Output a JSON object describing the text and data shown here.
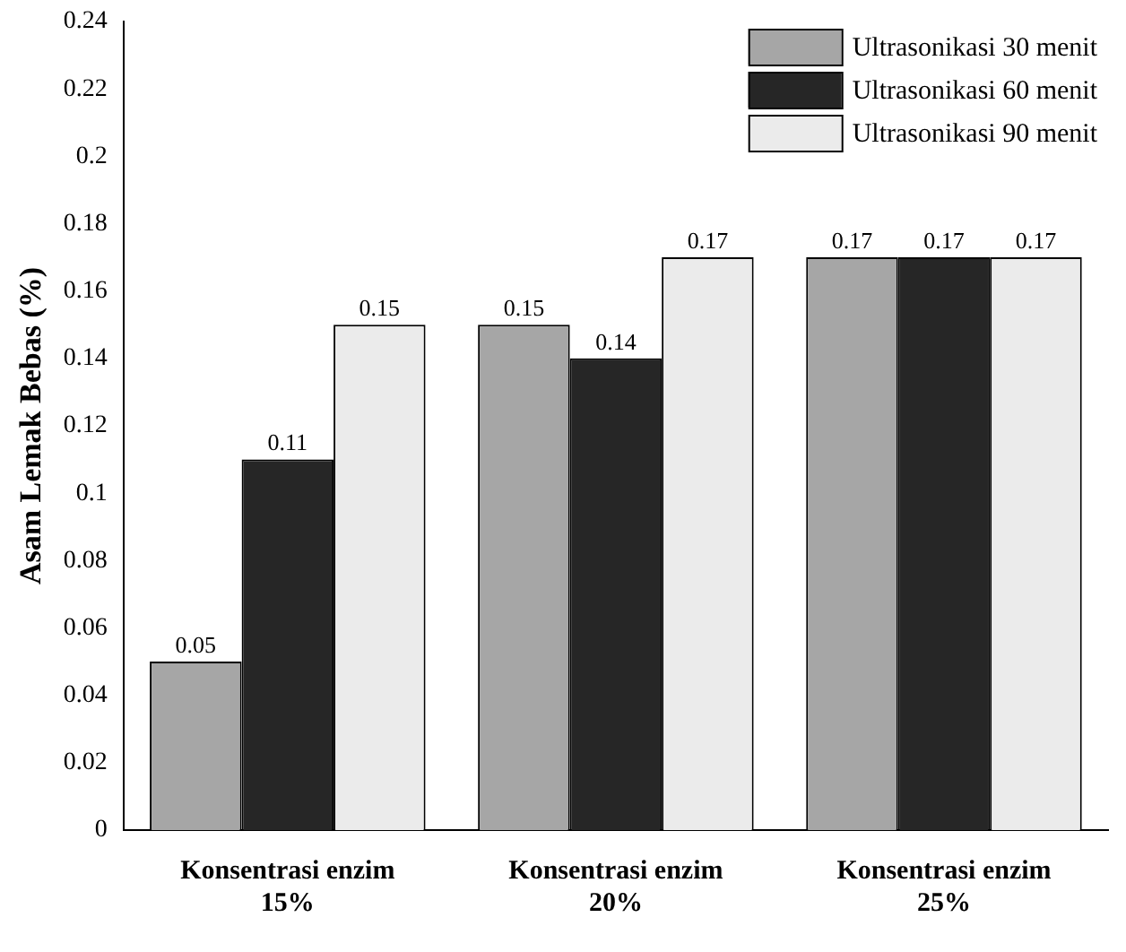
{
  "chart_data": {
    "type": "bar",
    "ylabel": "Asam Lemak Bebas (%)",
    "categories": [
      "Konsentrasi enzim 15%",
      "Konsentrasi enzim 20%",
      "Konsentrasi enzim 25%"
    ],
    "series": [
      {
        "name": "Ultrasonikasi 30 menit",
        "color": "#a6a6a6",
        "values": [
          0.05,
          0.15,
          0.17
        ]
      },
      {
        "name": "Ultrasonikasi 60 menit",
        "color": "#262626",
        "values": [
          0.11,
          0.14,
          0.17
        ]
      },
      {
        "name": "Ultrasonikasi 90 menit",
        "color": "#ebebeb",
        "values": [
          0.15,
          0.17,
          0.17
        ]
      }
    ],
    "ylim": [
      0,
      0.24
    ],
    "yticks": [
      0,
      0.02,
      0.04,
      0.06,
      0.08,
      0.1,
      0.12,
      0.14,
      0.16,
      0.18,
      0.2,
      0.22,
      0.24
    ],
    "grid": false,
    "legend": "top right",
    "data_labels": true
  }
}
